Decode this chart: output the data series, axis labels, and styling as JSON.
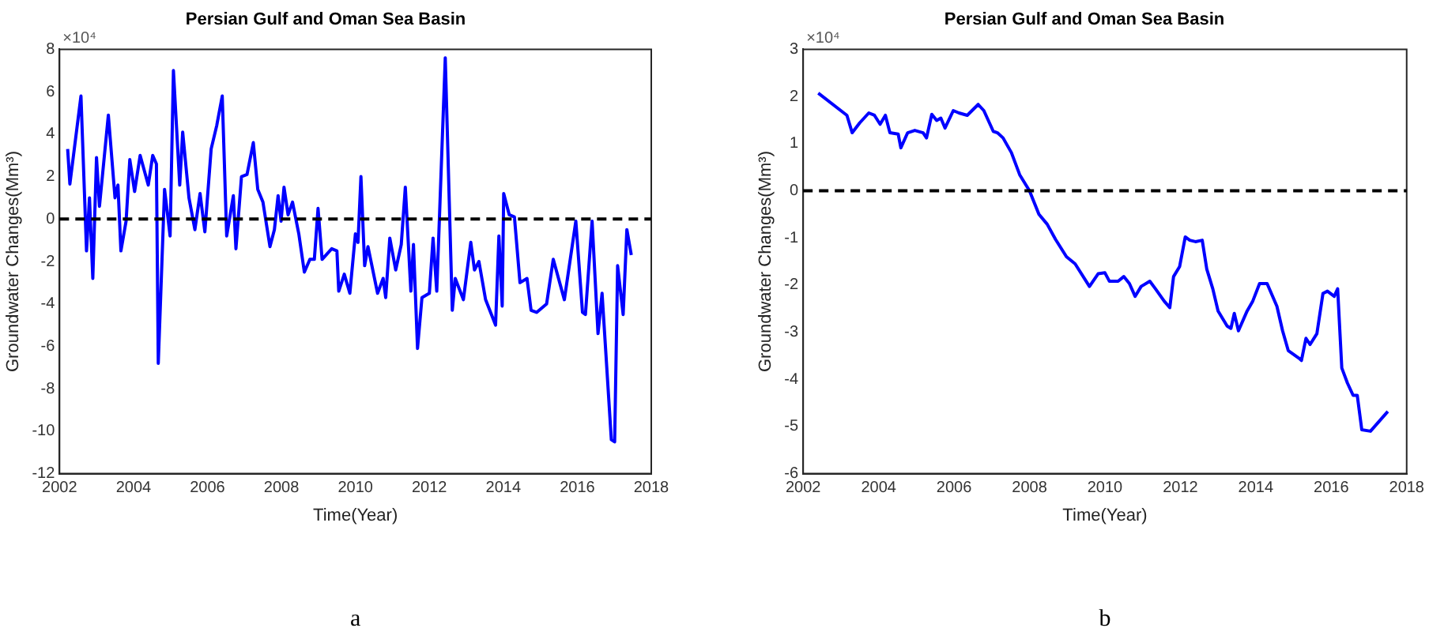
{
  "chart_data": [
    {
      "type": "line",
      "title": "Persian Gulf and Oman Sea Basin",
      "xlabel": "Time(Year)",
      "ylabel": "Groundwater Changes(Mm³)",
      "annotations": [
        "×10⁴",
        "a"
      ],
      "xlim": [
        2002,
        2018
      ],
      "xticks": [
        2002,
        2004,
        2006,
        2008,
        2010,
        2012,
        2014,
        2016,
        2018
      ],
      "ylim": [
        -12,
        8
      ],
      "yticks": [
        -12,
        -10,
        -8,
        -6,
        -4,
        -2,
        0,
        2,
        4,
        6,
        8
      ],
      "legend": false,
      "ref_lines": [
        {
          "axis": "y",
          "value": 0,
          "color": "#000000",
          "line_style": "dashed"
        }
      ],
      "series": [
        {
          "color": "#0000ff",
          "x": [
            2002.22,
            2002.28,
            2002.58,
            2002.73,
            2002.81,
            2002.9,
            2003.0,
            2003.08,
            2003.32,
            2003.5,
            2003.58,
            2003.66,
            2003.8,
            2003.9,
            2004.03,
            2004.18,
            2004.4,
            2004.52,
            2004.62,
            2004.67,
            2004.84,
            2004.99,
            2005.08,
            2005.25,
            2005.33,
            2005.5,
            2005.66,
            2005.8,
            2005.93,
            2006.1,
            2006.25,
            2006.4,
            2006.52,
            2006.7,
            2006.77,
            2006.92,
            2007.07,
            2007.24,
            2007.36,
            2007.5,
            2007.69,
            2007.81,
            2007.91,
            2007.99,
            2008.07,
            2008.18,
            2008.3,
            2008.47,
            2008.62,
            2008.77,
            2008.89,
            2008.99,
            2009.1,
            2009.36,
            2009.5,
            2009.55,
            2009.7,
            2009.85,
            2010.0,
            2010.07,
            2010.15,
            2010.25,
            2010.34,
            2010.6,
            2010.75,
            2010.82,
            2010.93,
            2011.09,
            2011.24,
            2011.35,
            2011.5,
            2011.57,
            2011.68,
            2011.8,
            2012.0,
            2012.1,
            2012.2,
            2012.43,
            2012.62,
            2012.7,
            2012.92,
            2013.12,
            2013.22,
            2013.34,
            2013.52,
            2013.79,
            2013.88,
            2013.97,
            2014.01,
            2014.16,
            2014.3,
            2014.45,
            2014.64,
            2014.75,
            2014.9,
            2015.17,
            2015.35,
            2015.65,
            2015.96,
            2016.14,
            2016.22,
            2016.4,
            2016.56,
            2016.67,
            2016.92,
            2017.01,
            2017.09,
            2017.24,
            2017.34,
            2017.46
          ],
          "values": [
            3.3,
            1.65,
            5.8,
            -1.5,
            1.0,
            -2.8,
            2.9,
            0.6,
            4.9,
            1.0,
            1.6,
            -1.5,
            -0.1,
            2.8,
            1.3,
            3.0,
            1.6,
            3.0,
            2.6,
            -6.8,
            1.4,
            -0.8,
            7.0,
            1.6,
            4.1,
            1.0,
            -0.5,
            1.2,
            -0.6,
            3.3,
            4.4,
            5.8,
            -0.8,
            1.1,
            -1.4,
            2.0,
            2.1,
            3.6,
            1.4,
            0.8,
            -1.3,
            -0.5,
            1.1,
            -0.1,
            1.5,
            0.2,
            0.8,
            -0.7,
            -2.5,
            -1.9,
            -1.9,
            0.5,
            -1.9,
            -1.4,
            -1.5,
            -3.4,
            -2.6,
            -3.5,
            -0.7,
            -1.1,
            2.0,
            -2.2,
            -1.3,
            -3.5,
            -2.8,
            -3.7,
            -0.9,
            -2.4,
            -1.2,
            1.5,
            -3.4,
            -1.2,
            -6.1,
            -3.7,
            -3.5,
            -0.9,
            -3.4,
            7.6,
            -4.3,
            -2.8,
            -3.8,
            -1.1,
            -2.4,
            -2.0,
            -3.8,
            -5.0,
            -0.8,
            -4.1,
            1.2,
            0.2,
            0.1,
            -3.0,
            -2.8,
            -4.3,
            -4.4,
            -4.0,
            -1.9,
            -3.8,
            -0.1,
            -4.4,
            -4.5,
            -0.1,
            -5.4,
            -3.5,
            -10.4,
            -10.5,
            -2.2,
            -4.5,
            -0.5,
            -1.7
          ]
        }
      ]
    },
    {
      "type": "line",
      "title": "Persian Gulf and Oman Sea Basin",
      "xlabel": "Time(Year)",
      "ylabel": "Groundwater Changes(Mm³)",
      "annotations": [
        "×10⁴",
        "b"
      ],
      "xlim": [
        2002,
        2018
      ],
      "xticks": [
        2002,
        2004,
        2006,
        2008,
        2010,
        2012,
        2014,
        2016,
        2018
      ],
      "ylim": [
        -6,
        3
      ],
      "yticks": [
        -6,
        -5,
        -4,
        -3,
        -2,
        -1,
        0,
        1,
        2,
        3
      ],
      "legend": false,
      "ref_lines": [
        {
          "axis": "y",
          "value": 0,
          "color": "#000000",
          "line_style": "dashed"
        }
      ],
      "series": [
        {
          "color": "#0000ff",
          "x": [
            2002.4,
            2003.16,
            2003.3,
            2003.5,
            2003.74,
            2003.89,
            2004.04,
            2004.18,
            2004.3,
            2004.52,
            2004.59,
            2004.77,
            2004.96,
            2005.18,
            2005.27,
            2005.41,
            2005.54,
            2005.65,
            2005.76,
            2005.98,
            2006.13,
            2006.35,
            2006.64,
            2006.79,
            2007.04,
            2007.15,
            2007.3,
            2007.52,
            2007.74,
            2008.0,
            2008.25,
            2008.47,
            2008.69,
            2008.98,
            2009.21,
            2009.59,
            2009.82,
            2010.0,
            2010.12,
            2010.35,
            2010.5,
            2010.65,
            2010.8,
            2010.96,
            2011.19,
            2011.34,
            2011.57,
            2011.72,
            2011.82,
            2011.98,
            2012.13,
            2012.25,
            2012.4,
            2012.58,
            2012.7,
            2012.86,
            2013.0,
            2013.24,
            2013.34,
            2013.43,
            2013.54,
            2013.77,
            2013.92,
            2014.1,
            2014.3,
            2014.56,
            2014.71,
            2014.86,
            2015.14,
            2015.21,
            2015.33,
            2015.44,
            2015.62,
            2015.78,
            2015.9,
            2016.08,
            2016.17,
            2016.28,
            2016.43,
            2016.58,
            2016.69,
            2016.81,
            2017.04,
            2017.5
          ],
          "values": [
            2.07,
            1.6,
            1.23,
            1.44,
            1.65,
            1.6,
            1.41,
            1.6,
            1.23,
            1.2,
            0.91,
            1.23,
            1.28,
            1.23,
            1.12,
            1.62,
            1.49,
            1.54,
            1.33,
            1.7,
            1.65,
            1.6,
            1.83,
            1.7,
            1.26,
            1.23,
            1.12,
            0.81,
            0.34,
            0,
            -0.5,
            -0.71,
            -1.03,
            -1.4,
            -1.55,
            -2.03,
            -1.76,
            -1.74,
            -1.92,
            -1.92,
            -1.82,
            -1.97,
            -2.24,
            -2.03,
            -1.92,
            -2.08,
            -2.34,
            -2.48,
            -1.82,
            -1.61,
            -0.98,
            -1.05,
            -1.08,
            -1.05,
            -1.66,
            -2.08,
            -2.55,
            -2.87,
            -2.92,
            -2.6,
            -2.97,
            -2.55,
            -2.34,
            -1.97,
            -1.97,
            -2.45,
            -2.97,
            -3.39,
            -3.55,
            -3.6,
            -3.13,
            -3.26,
            -3.03,
            -2.18,
            -2.13,
            -2.24,
            -2.08,
            -3.76,
            -4.08,
            -4.34,
            -4.34,
            -5.07,
            -5.1,
            -4.68
          ]
        }
      ]
    }
  ]
}
